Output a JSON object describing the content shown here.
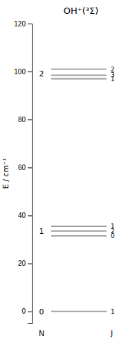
{
  "chart_data": {
    "type": "levels",
    "title": "OH⁺(³Σ)",
    "ylabel": "E / cm⁻¹",
    "ylim": [
      -5,
      120
    ],
    "yticks": [
      0,
      20,
      40,
      60,
      80,
      100,
      120
    ],
    "levels": [
      {
        "name": "0",
        "values": [
          0.0
        ],
        "labels": [
          "1"
        ]
      },
      {
        "name": "1",
        "values": [
          35.5,
          33.5,
          31.5
        ],
        "labels": [
          "1",
          "2",
          "0"
        ]
      },
      {
        "name": "2",
        "values": [
          101.0,
          98.5,
          97.0
        ],
        "labels": [
          "2",
          "3",
          "1"
        ]
      }
    ],
    "annotations": [
      "N",
      "J"
    ],
    "color": "#999999",
    "grid": false
  }
}
